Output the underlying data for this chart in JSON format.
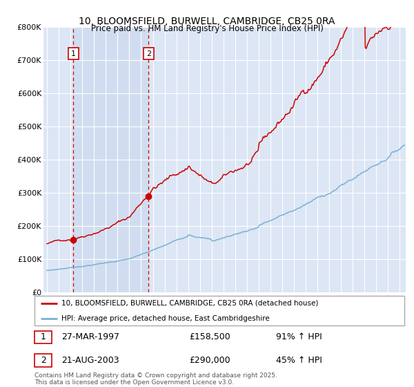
{
  "title_line1": "10, BLOOMSFIELD, BURWELL, CAMBRIDGE, CB25 0RA",
  "title_line2": "Price paid vs. HM Land Registry's House Price Index (HPI)",
  "legend_red": "10, BLOOMSFIELD, BURWELL, CAMBRIDGE, CB25 0RA (detached house)",
  "legend_blue": "HPI: Average price, detached house, East Cambridgeshire",
  "annotation1_label": "1",
  "annotation1_date": "27-MAR-1997",
  "annotation1_price": "£158,500",
  "annotation1_hpi": "91% ↑ HPI",
  "annotation1_year": 1997.23,
  "annotation1_value": 158500,
  "annotation2_label": "2",
  "annotation2_date": "21-AUG-2003",
  "annotation2_price": "£290,000",
  "annotation2_hpi": "45% ↑ HPI",
  "annotation2_year": 2003.64,
  "annotation2_value": 290000,
  "footer": "Contains HM Land Registry data © Crown copyright and database right 2025.\nThis data is licensed under the Open Government Licence v3.0.",
  "ylim": [
    0,
    800000
  ],
  "yticks": [
    0,
    100000,
    200000,
    300000,
    400000,
    500000,
    600000,
    700000,
    800000
  ],
  "ytick_labels": [
    "£0",
    "£100K",
    "£200K",
    "£300K",
    "£400K",
    "£500K",
    "£600K",
    "£700K",
    "£800K"
  ],
  "xlim_start": 1994.7,
  "xlim_end": 2025.5,
  "background_color": "#dce6f5",
  "shaded_region_color": "#dce6f5",
  "plot_bg_color": "#ffffff",
  "red_color": "#cc0000",
  "blue_color": "#7ab0d4",
  "grid_color": "#ffffff"
}
